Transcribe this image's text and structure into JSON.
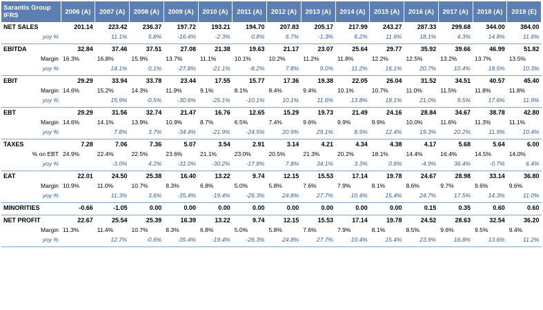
{
  "header": {
    "corner_line1": "Sarantis Group",
    "corner_line2": "IFRS",
    "years": [
      "2006 (A)",
      "2007 (A)",
      "2008 (A)",
      "2009 (A)",
      "2010 (A)",
      "2011 (A)",
      "2012 (A)",
      "2013 (A)",
      "2014 (A)",
      "2015 (A)",
      "2016 (A)",
      "2017 (A)",
      "2018 (A)",
      "2019 (E)"
    ]
  },
  "groups": [
    {
      "rows": [
        {
          "type": "main",
          "label": "NET SALES",
          "values": [
            "201.14",
            "223.42",
            "236.37",
            "197.72",
            "193.21",
            "194.70",
            "207.83",
            "205.17",
            "217.99",
            "243.27",
            "287.33",
            "299.68",
            "344.00",
            "384.00"
          ]
        },
        {
          "type": "yoy",
          "label": "yoy %",
          "values": [
            "",
            "11.1%",
            "5.8%",
            "-16.4%",
            "-2.3%",
            "0.8%",
            "6.7%",
            "-1.3%",
            "6.2%",
            "11.6%",
            "18.1%",
            "4.3%",
            "14.8%",
            "11.6%"
          ]
        }
      ]
    },
    {
      "rows": [
        {
          "type": "main",
          "label": "EBITDA",
          "values": [
            "32.84",
            "37.46",
            "37.51",
            "27.08",
            "21.38",
            "19.63",
            "21.17",
            "23.07",
            "25.64",
            "29.77",
            "35.92",
            "39.66",
            "46.99",
            "51.82"
          ]
        },
        {
          "type": "first",
          "label": "Margin",
          "values": [
            "16.3%",
            "16.8%",
            "15.9%",
            "13.7%",
            "11.1%",
            "10.1%",
            "10.2%",
            "11.2%",
            "11.8%",
            "12.2%",
            "12.5%",
            "13.2%",
            "13.7%",
            "13.5%"
          ]
        },
        {
          "type": "yoy",
          "label": "yoy %",
          "values": [
            "",
            "14.1%",
            "0.1%",
            "-27.8%",
            "-21.1%",
            "-8.2%",
            "7.8%",
            "9.0%",
            "11.2%",
            "16.1%",
            "20.7%",
            "10.4%",
            "18.5%",
            "10.3%"
          ]
        }
      ]
    },
    {
      "rows": [
        {
          "type": "main",
          "label": "EBIT",
          "values": [
            "29.29",
            "33.94",
            "33.78",
            "23.44",
            "17.55",
            "15.77",
            "17.36",
            "19.38",
            "22.05",
            "26.04",
            "31.52",
            "34.51",
            "40.57",
            "45.40"
          ]
        },
        {
          "type": "first",
          "label": "Margin",
          "values": [
            "14.6%",
            "15.2%",
            "14.3%",
            "11.9%",
            "9.1%",
            "8.1%",
            "8.4%",
            "9.4%",
            "10.1%",
            "10.7%",
            "11.0%",
            "11.5%",
            "11.8%",
            "11.8%"
          ]
        },
        {
          "type": "yoy",
          "label": "yoy %",
          "values": [
            "",
            "15.9%",
            "-0.5%",
            "-30.6%",
            "-25.1%",
            "-10.1%",
            "10.1%",
            "11.6%",
            "13.8%",
            "18.1%",
            "21.0%",
            "9.5%",
            "17.6%",
            "11.9%"
          ]
        }
      ]
    },
    {
      "rows": [
        {
          "type": "main",
          "label": "EBT",
          "values": [
            "29.29",
            "31.56",
            "32.74",
            "21.47",
            "16.76",
            "12.65",
            "15.29",
            "19.73",
            "21.49",
            "24.16",
            "28.84",
            "34.67",
            "38.78",
            "42.80"
          ]
        },
        {
          "type": "first",
          "label": "Margin",
          "values": [
            "14.6%",
            "14.1%",
            "13.9%",
            "10.9%",
            "8.7%",
            "6.5%",
            "7.4%",
            "9.6%",
            "9.9%",
            "9.9%",
            "10.0%",
            "11.6%",
            "11.3%",
            "11.1%"
          ]
        },
        {
          "type": "yoy",
          "label": "yoy %",
          "values": [
            "",
            "7.8%",
            "3.7%",
            "-34.4%",
            "-21.9%",
            "-24.5%",
            "20.9%",
            "29.1%",
            "8.9%",
            "12.4%",
            "19.3%",
            "20.2%",
            "11.9%",
            "10.4%"
          ]
        }
      ]
    },
    {
      "rows": [
        {
          "type": "main",
          "label": "TAXES",
          "values": [
            "7.28",
            "7.06",
            "7.36",
            "5.07",
            "3.54",
            "2.91",
            "3.14",
            "4.21",
            "4.34",
            "4.38",
            "4.17",
            "5.68",
            "5.64",
            "6.00"
          ]
        },
        {
          "type": "first",
          "label": "% on EBT",
          "values": [
            "24.9%",
            "22.4%",
            "22.5%",
            "23.6%",
            "21.1%",
            "23.0%",
            "20.5%",
            "21.3%",
            "20.2%",
            "18.1%",
            "14.4%",
            "16.4%",
            "14.5%",
            "14.0%"
          ]
        },
        {
          "type": "yoy",
          "label": "yoy %",
          "values": [
            "",
            "-3.0%",
            "4.2%",
            "-31.0%",
            "-30.2%",
            "-17.8%",
            "7.8%",
            "34.1%",
            "3.3%",
            "0.8%",
            "-4.9%",
            "36.4%",
            "-0.7%",
            "6.4%"
          ]
        }
      ]
    },
    {
      "rows": [
        {
          "type": "main",
          "label": "EAT",
          "values": [
            "22.01",
            "24.50",
            "25.38",
            "16.40",
            "13.22",
            "9.74",
            "12.15",
            "15.53",
            "17.14",
            "19.78",
            "24.67",
            "28.98",
            "33.14",
            "36.80"
          ]
        },
        {
          "type": "first",
          "label": "Margin",
          "values": [
            "10.9%",
            "11.0%",
            "10.7%",
            "8.3%",
            "6.8%",
            "5.0%",
            "5.8%",
            "7.6%",
            "7.9%",
            "8.1%",
            "8.6%",
            "9.7%",
            "9.6%",
            "9.6%"
          ]
        },
        {
          "type": "yoy",
          "label": "yoy %",
          "values": [
            "",
            "11.3%",
            "3.6%",
            "-35.4%",
            "-19.4%",
            "-26.3%",
            "24.8%",
            "27.7%",
            "10.4%",
            "15.4%",
            "24.7%",
            "17.5%",
            "14.3%",
            "11.0%"
          ]
        }
      ]
    },
    {
      "rows": [
        {
          "type": "main",
          "label": "MINORITIES",
          "values": [
            "-0.66",
            "-1.05",
            "0.00",
            "0.00",
            "0.00",
            "0.00",
            "0.00",
            "0.00",
            "0.00",
            "0.00",
            "0.15",
            "0.35",
            "0.60",
            "0.60"
          ]
        }
      ]
    },
    {
      "rows": [
        {
          "type": "main",
          "label": "NET PROFIT",
          "values": [
            "22.67",
            "25.54",
            "25.39",
            "16.39",
            "13.22",
            "9.74",
            "12.15",
            "15.53",
            "17.14",
            "19.78",
            "24.52",
            "28.63",
            "32.54",
            "36.20"
          ]
        },
        {
          "type": "first",
          "label": "Margin",
          "values": [
            "11.3%",
            "11.4%",
            "10.7%",
            "8.3%",
            "6.8%",
            "5.0%",
            "5.8%",
            "7.6%",
            "7.9%",
            "8.1%",
            "8.5%",
            "9.6%",
            "9.5%",
            "9.4%"
          ]
        },
        {
          "type": "yoy",
          "label": "yoy %",
          "values": [
            "",
            "12.7%",
            "-0.6%",
            "-35.4%",
            "-19.4%",
            "-26.3%",
            "24.8%",
            "27.7%",
            "10.4%",
            "15.4%",
            "23.9%",
            "16.8%",
            "13.6%",
            "11.2%"
          ]
        }
      ]
    }
  ]
}
